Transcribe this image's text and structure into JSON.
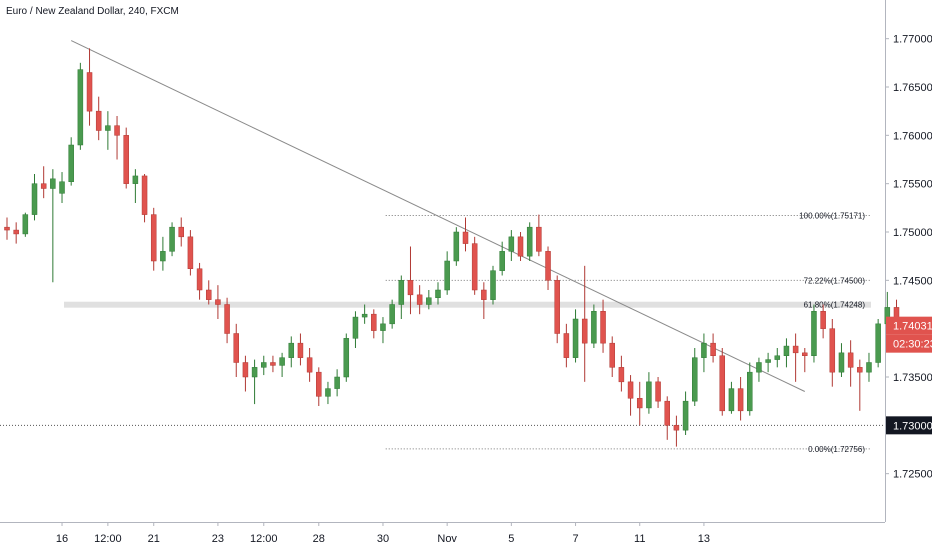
{
  "header": {
    "title": "Euro / New Zealand Dollar, 240, FXCM"
  },
  "colors": {
    "up": "#4a9a4f",
    "down": "#e0534e",
    "wick_up": "#2e7a34",
    "wick_down": "#b03833",
    "trendline": "#8a8a8a",
    "badge_black": "#131722"
  },
  "chart_data": {
    "type": "candlestick",
    "y_range": [
      1.72,
      1.774
    ],
    "y_ticks": [
      "1.77000",
      "1.76500",
      "1.76000",
      "1.75500",
      "1.75000",
      "1.74500",
      "1.74000",
      "1.73500",
      "1.73000",
      "1.72500"
    ],
    "x_ticks": [
      {
        "label": "16",
        "x": 6
      },
      {
        "label": "12:00",
        "x": 11
      },
      {
        "label": "21",
        "x": 16
      },
      {
        "label": "23",
        "x": 23
      },
      {
        "label": "12:00",
        "x": 28
      },
      {
        "label": "28",
        "x": 34
      },
      {
        "label": "30",
        "x": 41
      },
      {
        "label": "Nov",
        "x": 48
      },
      {
        "label": "5",
        "x": 55
      },
      {
        "label": "7",
        "x": 62
      },
      {
        "label": "11",
        "x": 69
      },
      {
        "label": "13",
        "x": 76
      }
    ],
    "candles": [
      [
        1.7505,
        1.7515,
        1.7492,
        1.7502
      ],
      [
        1.7502,
        1.751,
        1.7488,
        1.7498
      ],
      [
        1.7498,
        1.752,
        1.7495,
        1.7518
      ],
      [
        1.7518,
        1.756,
        1.7512,
        1.755
      ],
      [
        1.755,
        1.7568,
        1.7535,
        1.7545
      ],
      [
        1.7545,
        1.7565,
        1.7448,
        1.7555
      ],
      [
        1.754,
        1.7562,
        1.753,
        1.7552
      ],
      [
        1.7552,
        1.7598,
        1.7548,
        1.759
      ],
      [
        1.759,
        1.7675,
        1.7585,
        1.7668
      ],
      [
        1.7665,
        1.769,
        1.761,
        1.7625
      ],
      [
        1.7625,
        1.764,
        1.7595,
        1.7605
      ],
      [
        1.7605,
        1.7625,
        1.7585,
        1.761
      ],
      [
        1.761,
        1.762,
        1.7575,
        1.76
      ],
      [
        1.76,
        1.7608,
        1.7545,
        1.755
      ],
      [
        1.755,
        1.7565,
        1.753,
        1.7558
      ],
      [
        1.7558,
        1.756,
        1.751,
        1.7518
      ],
      [
        1.7518,
        1.7525,
        1.746,
        1.747
      ],
      [
        1.747,
        1.7495,
        1.746,
        1.748
      ],
      [
        1.748,
        1.751,
        1.7475,
        1.7505
      ],
      [
        1.7505,
        1.7515,
        1.7485,
        1.7495
      ],
      [
        1.7495,
        1.7502,
        1.7455,
        1.7462
      ],
      [
        1.7462,
        1.7468,
        1.743,
        1.744
      ],
      [
        1.744,
        1.745,
        1.7425,
        1.743
      ],
      [
        1.743,
        1.7445,
        1.741,
        1.7425
      ],
      [
        1.7425,
        1.7432,
        1.7385,
        1.7395
      ],
      [
        1.7395,
        1.7405,
        1.735,
        1.7365
      ],
      [
        1.7365,
        1.7372,
        1.7335,
        1.735
      ],
      [
        1.735,
        1.7368,
        1.7322,
        1.736
      ],
      [
        1.736,
        1.7372,
        1.7352,
        1.7365
      ],
      [
        1.7365,
        1.7372,
        1.7355,
        1.7362
      ],
      [
        1.7362,
        1.7375,
        1.735,
        1.737
      ],
      [
        1.737,
        1.7392,
        1.736,
        1.7385
      ],
      [
        1.7385,
        1.7395,
        1.7362,
        1.737
      ],
      [
        1.737,
        1.738,
        1.7345,
        1.7355
      ],
      [
        1.7355,
        1.736,
        1.732,
        1.733
      ],
      [
        1.733,
        1.7345,
        1.7322,
        1.7338
      ],
      [
        1.7338,
        1.7358,
        1.733,
        1.735
      ],
      [
        1.735,
        1.7395,
        1.7345,
        1.739
      ],
      [
        1.739,
        1.7418,
        1.738,
        1.7412
      ],
      [
        1.7412,
        1.7425,
        1.7405,
        1.7415
      ],
      [
        1.7415,
        1.742,
        1.739,
        1.7398
      ],
      [
        1.7398,
        1.7412,
        1.7385,
        1.7405
      ],
      [
        1.7405,
        1.743,
        1.74,
        1.7425
      ],
      [
        1.7425,
        1.7455,
        1.741,
        1.745
      ],
      [
        1.745,
        1.7485,
        1.7415,
        1.7435
      ],
      [
        1.7435,
        1.7445,
        1.7415,
        1.7425
      ],
      [
        1.7425,
        1.744,
        1.742,
        1.7432
      ],
      [
        1.7432,
        1.7448,
        1.7425,
        1.744
      ],
      [
        1.744,
        1.748,
        1.7435,
        1.747
      ],
      [
        1.747,
        1.7505,
        1.7465,
        1.75
      ],
      [
        1.75,
        1.7515,
        1.748,
        1.7488
      ],
      [
        1.7488,
        1.7495,
        1.7435,
        1.744
      ],
      [
        1.744,
        1.7448,
        1.741,
        1.743
      ],
      [
        1.743,
        1.7465,
        1.7425,
        1.746
      ],
      [
        1.746,
        1.749,
        1.7455,
        1.748
      ],
      [
        1.748,
        1.7502,
        1.747,
        1.7495
      ],
      [
        1.7495,
        1.75,
        1.747,
        1.7475
      ],
      [
        1.7475,
        1.751,
        1.747,
        1.7505
      ],
      [
        1.7505,
        1.7518,
        1.7475,
        1.748
      ],
      [
        1.748,
        1.7485,
        1.744,
        1.745
      ],
      [
        1.745,
        1.7455,
        1.7385,
        1.7395
      ],
      [
        1.7395,
        1.7405,
        1.736,
        1.737
      ],
      [
        1.737,
        1.742,
        1.7365,
        1.741
      ],
      [
        1.741,
        1.7465,
        1.7345,
        1.7385
      ],
      [
        1.7385,
        1.7425,
        1.738,
        1.7418
      ],
      [
        1.7418,
        1.743,
        1.7375,
        1.7385
      ],
      [
        1.7385,
        1.7392,
        1.735,
        1.736
      ],
      [
        1.736,
        1.7372,
        1.7335,
        1.7345
      ],
      [
        1.7345,
        1.7352,
        1.731,
        1.7328
      ],
      [
        1.7328,
        1.7345,
        1.73,
        1.7318
      ],
      [
        1.7318,
        1.7355,
        1.7312,
        1.7345
      ],
      [
        1.7345,
        1.735,
        1.7318,
        1.7325
      ],
      [
        1.7325,
        1.733,
        1.7285,
        1.73
      ],
      [
        1.73,
        1.731,
        1.7278,
        1.7295
      ],
      [
        1.7295,
        1.7335,
        1.729,
        1.7325
      ],
      [
        1.7325,
        1.738,
        1.732,
        1.737
      ],
      [
        1.737,
        1.7395,
        1.7355,
        1.7385
      ],
      [
        1.7385,
        1.7395,
        1.7365,
        1.7372
      ],
      [
        1.7372,
        1.738,
        1.731,
        1.7315
      ],
      [
        1.7315,
        1.7345,
        1.7312,
        1.7338
      ],
      [
        1.7338,
        1.735,
        1.7305,
        1.7315
      ],
      [
        1.7315,
        1.7365,
        1.731,
        1.7355
      ],
      [
        1.7355,
        1.737,
        1.7345,
        1.7365
      ],
      [
        1.7365,
        1.7375,
        1.7355,
        1.7368
      ],
      [
        1.7368,
        1.738,
        1.736,
        1.7372
      ],
      [
        1.7372,
        1.739,
        1.736,
        1.7382
      ],
      [
        1.7382,
        1.7395,
        1.7345,
        1.7375
      ],
      [
        1.7375,
        1.738,
        1.7355,
        1.7372
      ],
      [
        1.7372,
        1.7425,
        1.7365,
        1.7418
      ],
      [
        1.7418,
        1.7425,
        1.739,
        1.74
      ],
      [
        1.74,
        1.741,
        1.734,
        1.7355
      ],
      [
        1.7355,
        1.7385,
        1.735,
        1.7375
      ],
      [
        1.7375,
        1.7388,
        1.734,
        1.736
      ],
      [
        1.736,
        1.7368,
        1.7315,
        1.7355
      ],
      [
        1.7355,
        1.7375,
        1.7345,
        1.7365
      ],
      [
        1.7365,
        1.741,
        1.736,
        1.7405
      ],
      [
        1.7405,
        1.7438,
        1.7395,
        1.7422
      ],
      [
        1.7422,
        1.743,
        1.7398,
        1.7403
      ]
    ],
    "trendline": [
      [
        7,
        1.7698
      ],
      [
        87,
        1.7335
      ]
    ],
    "fib_levels": [
      {
        "label": "100.00%(1.75171)",
        "price": 1.75171
      },
      {
        "label": "72.22%(1.74500)",
        "price": 1.745
      },
      {
        "label": "61.80%(1.74248)",
        "price": 1.74248
      },
      {
        "label": "0.00%(1.72756)",
        "price": 1.72756
      }
    ],
    "dotted_line_price": 1.73,
    "last_price": {
      "value": "1.74031",
      "price": 1.74031
    },
    "countdown": "02:30:23",
    "marked_price": {
      "value": "1.73000",
      "price": 1.73
    }
  }
}
